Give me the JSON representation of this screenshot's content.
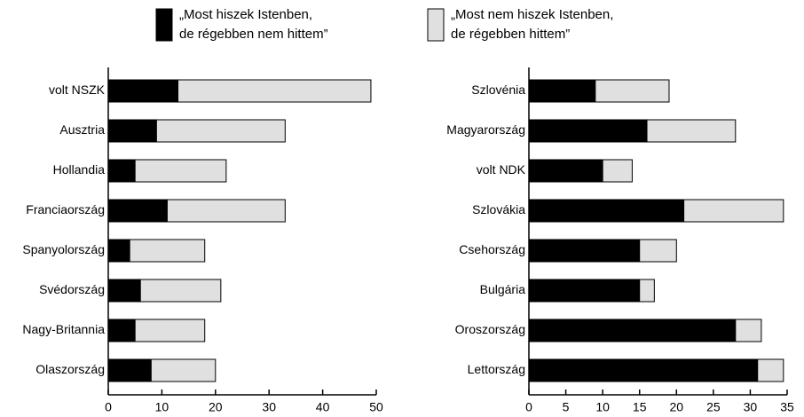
{
  "chart_data": [
    {
      "type": "hbar_stacked",
      "categories": [
        "volt NSZK",
        "Ausztria",
        "Hollandia",
        "Franciaország",
        "Spanyolország",
        "Svédország",
        "Nagy-Britannia",
        "Olaszország"
      ],
      "series": [
        {
          "name": "„Most hiszek Istenben,\nde régebben nem hittem”",
          "color": "#000000",
          "values": [
            13,
            9,
            5,
            11,
            4,
            6,
            5,
            8
          ]
        },
        {
          "name": "„Most nem hiszek Istenben,\nde régebben hittem”",
          "color": "#e0e0e0",
          "values": [
            36,
            24,
            17,
            22,
            14,
            15,
            13,
            12
          ]
        }
      ],
      "xlim": [
        0,
        50
      ],
      "xticks": [
        0,
        10,
        20,
        30,
        40,
        50
      ]
    },
    {
      "type": "hbar_stacked",
      "categories": [
        "Szlovénia",
        "Magyarország",
        "volt NDK",
        "Szlovákia",
        "Csehország",
        "Bulgária",
        "Oroszország",
        "Lettország"
      ],
      "series": [
        {
          "color": "#000000",
          "values": [
            9,
            16,
            10,
            21,
            15,
            15,
            28,
            31
          ]
        },
        {
          "color": "#e0e0e0",
          "values": [
            10,
            12,
            4,
            13.5,
            5,
            2,
            3.5,
            3.5
          ]
        }
      ],
      "xlim": [
        0,
        35
      ],
      "xticks": [
        0,
        5,
        10,
        15,
        20,
        25,
        30,
        35
      ]
    }
  ]
}
